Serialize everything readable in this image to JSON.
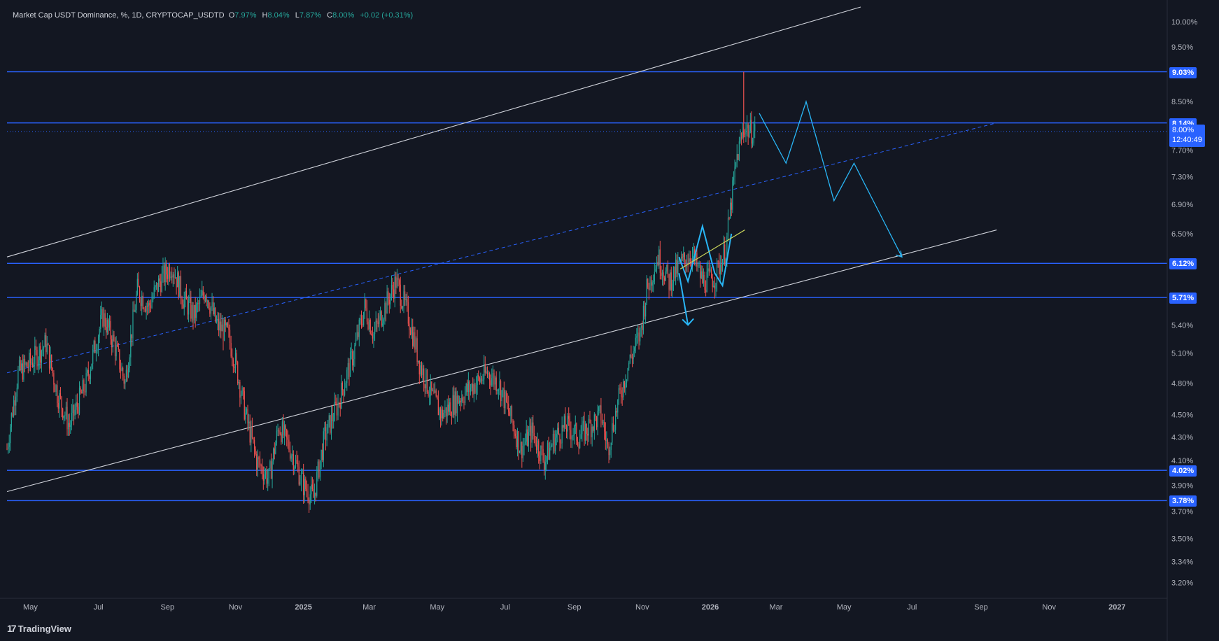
{
  "legend": {
    "symbol": "Market Cap USDT Dominance, %, 1D, CRYPTOCAP_USDTD",
    "o_label": "O",
    "o_value": "7.97%",
    "h_label": "H",
    "h_value": "8.04%",
    "l_label": "L",
    "l_value": "7.87%",
    "c_label": "C",
    "c_value": "8.00%",
    "change": "+0.02 (+0.31%)"
  },
  "brand": {
    "logo": "17",
    "name": "TradingView"
  },
  "colors": {
    "background": "#131722",
    "up": "#26a69a",
    "down": "#ef5350",
    "level_line": "#2962ff",
    "channel": "#d1d4dc",
    "projection": "#29b6f6",
    "highlight": "#c8d35a",
    "axis_text": "#b2b5be"
  },
  "current_price": {
    "value": "8.00%",
    "countdown": "12:40:49"
  },
  "chart_data": {
    "type": "candlestick",
    "title": "Market Cap USDT Dominance, %, 1D, CRYPTOCAP_USDTD",
    "y_scale": "log",
    "ylim": [
      3.1,
      10.3
    ],
    "x_range": [
      "2024-04-10",
      "2027-02-15"
    ],
    "y_ticks": [
      "10.00%",
      "9.50%",
      "8.50%",
      "7.70%",
      "7.30%",
      "6.90%",
      "6.50%",
      "5.40%",
      "5.10%",
      "4.80%",
      "4.50%",
      "4.30%",
      "4.10%",
      "3.90%",
      "3.70%",
      "3.50%",
      "3.34%",
      "3.20%"
    ],
    "x_ticks": [
      {
        "label": "May",
        "date": "2024-05-01",
        "bold": false
      },
      {
        "label": "Jul",
        "date": "2024-07-01",
        "bold": false
      },
      {
        "label": "Sep",
        "date": "2024-09-01",
        "bold": false
      },
      {
        "label": "Nov",
        "date": "2024-11-01",
        "bold": false
      },
      {
        "label": "2025",
        "date": "2025-01-01",
        "bold": true
      },
      {
        "label": "Mar",
        "date": "2025-03-01",
        "bold": false
      },
      {
        "label": "May",
        "date": "2025-05-01",
        "bold": false
      },
      {
        "label": "Jul",
        "date": "2025-07-01",
        "bold": false
      },
      {
        "label": "Sep",
        "date": "2025-09-01",
        "bold": false
      },
      {
        "label": "Nov",
        "date": "2025-11-01",
        "bold": false
      },
      {
        "label": "2026",
        "date": "2026-01-01",
        "bold": true
      },
      {
        "label": "Mar",
        "date": "2026-03-01",
        "bold": false
      },
      {
        "label": "May",
        "date": "2026-05-01",
        "bold": false
      },
      {
        "label": "Jul",
        "date": "2026-07-01",
        "bold": false
      },
      {
        "label": "Sep",
        "date": "2026-09-01",
        "bold": false
      },
      {
        "label": "Nov",
        "date": "2026-11-01",
        "bold": false
      },
      {
        "label": "2027",
        "date": "2027-01-01",
        "bold": true
      }
    ],
    "horizontal_levels": [
      {
        "value": 9.03,
        "label": "9.03%"
      },
      {
        "value": 8.14,
        "label": "8.14%"
      },
      {
        "value": 6.12,
        "label": "6.12%"
      },
      {
        "value": 5.71,
        "label": "5.71%"
      },
      {
        "value": 4.02,
        "label": "4.02%"
      },
      {
        "value": 3.78,
        "label": "3.78%"
      }
    ],
    "price_path": [
      [
        "2024-04-10",
        4.2
      ],
      [
        "2024-04-20",
        4.9
      ],
      [
        "2024-05-01",
        5.0
      ],
      [
        "2024-05-15",
        5.2
      ],
      [
        "2024-05-25",
        4.7
      ],
      [
        "2024-06-05",
        4.4
      ],
      [
        "2024-06-20",
        4.8
      ],
      [
        "2024-07-05",
        5.5
      ],
      [
        "2024-07-15",
        5.2
      ],
      [
        "2024-07-25",
        4.8
      ],
      [
        "2024-08-05",
        5.8
      ],
      [
        "2024-08-15",
        5.6
      ],
      [
        "2024-08-25",
        5.9
      ],
      [
        "2024-09-05",
        6.1
      ],
      [
        "2024-09-15",
        5.7
      ],
      [
        "2024-09-25",
        5.5
      ],
      [
        "2024-10-05",
        5.8
      ],
      [
        "2024-10-15",
        5.4
      ],
      [
        "2024-10-25",
        5.3
      ],
      [
        "2024-11-01",
        5.0
      ],
      [
        "2024-11-10",
        4.5
      ],
      [
        "2024-11-20",
        4.1
      ],
      [
        "2024-12-01",
        3.95
      ],
      [
        "2024-12-10",
        4.4
      ],
      [
        "2024-12-20",
        4.2
      ],
      [
        "2025-01-01",
        3.9
      ],
      [
        "2025-01-10",
        3.8
      ],
      [
        "2025-01-20",
        4.3
      ],
      [
        "2025-02-01",
        4.6
      ],
      [
        "2025-02-15",
        5.1
      ],
      [
        "2025-02-25",
        5.6
      ],
      [
        "2025-03-05",
        5.3
      ],
      [
        "2025-03-15",
        5.6
      ],
      [
        "2025-03-25",
        5.9
      ],
      [
        "2025-04-05",
        5.5
      ],
      [
        "2025-04-15",
        5.0
      ],
      [
        "2025-04-25",
        4.7
      ],
      [
        "2025-05-05",
        4.5
      ],
      [
        "2025-05-15",
        4.6
      ],
      [
        "2025-05-25",
        4.7
      ],
      [
        "2025-06-05",
        4.8
      ],
      [
        "2025-06-15",
        4.9
      ],
      [
        "2025-06-25",
        4.8
      ],
      [
        "2025-07-05",
        4.5
      ],
      [
        "2025-07-15",
        4.2
      ],
      [
        "2025-07-25",
        4.35
      ],
      [
        "2025-08-05",
        4.1
      ],
      [
        "2025-08-15",
        4.3
      ],
      [
        "2025-08-25",
        4.4
      ],
      [
        "2025-09-05",
        4.3
      ],
      [
        "2025-09-15",
        4.4
      ],
      [
        "2025-09-25",
        4.5
      ],
      [
        "2025-10-01",
        4.2
      ],
      [
        "2025-10-10",
        4.6
      ],
      [
        "2025-10-20",
        5.0
      ],
      [
        "2025-10-30",
        5.3
      ],
      [
        "2025-11-05",
        5.8
      ],
      [
        "2025-11-15",
        6.2
      ],
      [
        "2025-11-25",
        5.9
      ],
      [
        "2025-12-05",
        6.1
      ],
      [
        "2025-12-15",
        6.25
      ],
      [
        "2025-12-25",
        5.9
      ],
      [
        "2026-01-05",
        5.95
      ],
      [
        "2026-01-15",
        6.3
      ],
      [
        "2026-01-25",
        7.6
      ],
      [
        "2026-02-01",
        8.1
      ],
      [
        "2026-02-05",
        8.0
      ],
      [
        "2026-02-10",
        8.0
      ]
    ],
    "channel_lines": [
      {
        "from": [
          "2024-04-10",
          6.2
        ],
        "to": [
          "2026-05-16",
          10.3
        ]
      },
      {
        "from": [
          "2024-04-10",
          3.85
        ],
        "to": [
          "2026-09-15",
          6.55
        ]
      }
    ],
    "median_line": {
      "from": [
        "2024-04-10",
        4.9
      ],
      "to": [
        "2026-09-15",
        8.14
      ]
    },
    "projection_path": [
      [
        "2026-02-14",
        8.3
      ],
      [
        "2026-03-10",
        7.5
      ],
      [
        "2026-03-28",
        8.5
      ],
      [
        "2026-04-22",
        6.95
      ],
      [
        "2026-05-10",
        7.5
      ],
      [
        "2026-06-22",
        6.2
      ]
    ],
    "small_projection": [
      [
        "2025-12-04",
        6.2
      ],
      [
        "2025-12-12",
        5.9
      ],
      [
        "2025-12-25",
        6.6
      ],
      [
        "2026-01-05",
        6.0
      ],
      [
        "2026-01-12",
        5.85
      ],
      [
        "2026-01-20",
        6.5
      ]
    ],
    "down_arrow": {
      "from": [
        "2025-12-04",
        6.0
      ],
      "to": [
        "2025-12-12",
        5.4
      ]
    },
    "highlight_line": {
      "from": [
        "2025-12-05",
        6.05
      ],
      "to": [
        "2026-02-01",
        6.55
      ]
    }
  }
}
